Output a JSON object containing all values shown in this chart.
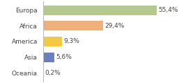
{
  "categories": [
    "Europa",
    "Africa",
    "America",
    "Asia",
    "Oceania"
  ],
  "values": [
    55.4,
    29.4,
    9.3,
    5.6,
    0.2
  ],
  "labels": [
    "55,4%",
    "29,4%",
    "9,3%",
    "5,6%",
    "0,2%"
  ],
  "bar_colors": [
    "#b5c98e",
    "#f0b07a",
    "#f5c842",
    "#6b7fbf",
    "#c8c8c8"
  ],
  "background_color": "#ffffff",
  "label_fontsize": 6.5,
  "category_fontsize": 6.5,
  "xlim": [
    0,
    72
  ],
  "border_color": "#bbbbbb"
}
